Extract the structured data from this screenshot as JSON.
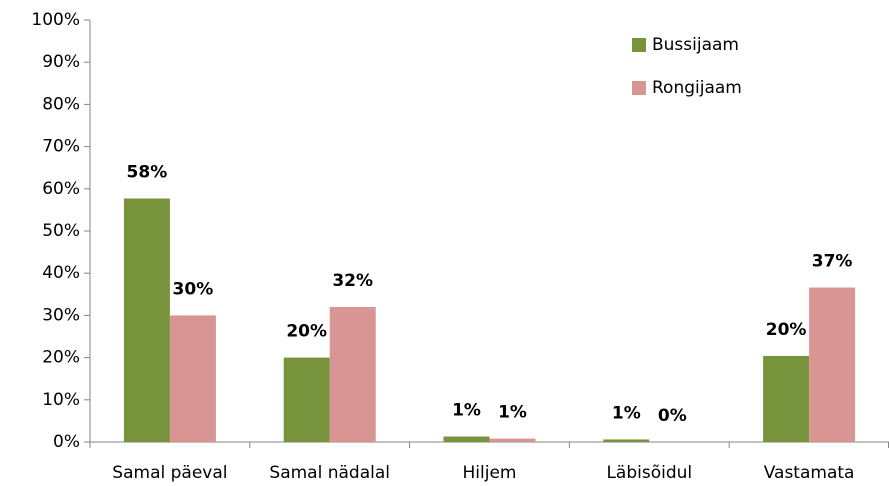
{
  "chart_data": {
    "type": "bar",
    "categories": [
      "Samal päeval",
      "Samal nädalal",
      "Hiljem",
      "Läbisõidul",
      "Vastamata"
    ],
    "series": [
      {
        "name": "Bussijaam",
        "color": "#77933c",
        "values": [
          57.7,
          20,
          1.3,
          0.6,
          20.4
        ],
        "value_labels": [
          "58%",
          "20%",
          "1%",
          "1%",
          "20%"
        ]
      },
      {
        "name": "Rongijaam",
        "color": "#d99594",
        "values": [
          30,
          32,
          0.8,
          0,
          36.6
        ],
        "value_labels": [
          "30%",
          "32%",
          "1%",
          "0%",
          "37%"
        ]
      }
    ],
    "ylim": [
      0,
      100
    ],
    "yticks": [
      {
        "value": 0,
        "label": "0%"
      },
      {
        "value": 10,
        "label": "10%"
      },
      {
        "value": 20,
        "label": "20%"
      },
      {
        "value": 30,
        "label": "30%"
      },
      {
        "value": 40,
        "label": "40%"
      },
      {
        "value": 50,
        "label": "50%"
      },
      {
        "value": 60,
        "label": "60%"
      },
      {
        "value": 70,
        "label": "70%"
      },
      {
        "value": 80,
        "label": "80%"
      },
      {
        "value": 90,
        "label": "90%"
      },
      {
        "value": 100,
        "label": "100%"
      }
    ],
    "legend": "upper right"
  }
}
